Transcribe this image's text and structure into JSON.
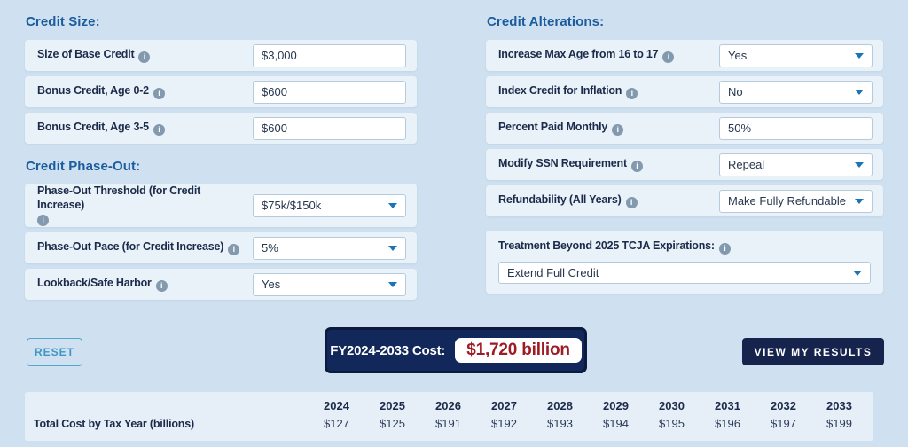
{
  "icons": {
    "info_glyph": "i"
  },
  "colors": {
    "page_bg": "#cfe1f0",
    "row_bg": "#e9f1f9",
    "heading_blue": "#1a5c9e",
    "label_navy": "#1c2b4a",
    "accent_navy": "#12275a",
    "cost_red": "#9e1b24",
    "reset_teal": "#3d97c2",
    "dropdown_arrow": "#1974b8"
  },
  "sections": {
    "credit_size": {
      "heading": "Credit Size:",
      "rows": [
        {
          "label": "Size of Base Credit",
          "value": "$3,000"
        },
        {
          "label": "Bonus Credit, Age 0-2",
          "value": "$600"
        },
        {
          "label": "Bonus Credit, Age 3-5",
          "value": "$600"
        }
      ]
    },
    "credit_phase_out": {
      "heading": "Credit Phase-Out:",
      "rows": [
        {
          "label": "Phase-Out Threshold (for Credit Increase)",
          "value": "$75k/$150k"
        },
        {
          "label": "Phase-Out Pace (for Credit Increase)",
          "value": "5%"
        },
        {
          "label": "Lookback/Safe Harbor",
          "value": "Yes"
        }
      ]
    },
    "credit_alterations": {
      "heading": "Credit Alterations:",
      "rows": [
        {
          "label": "Increase Max Age from 16 to 17",
          "value": "Yes"
        },
        {
          "label": "Index Credit for Inflation",
          "value": "No"
        },
        {
          "label": "Percent Paid Monthly",
          "value": "50%"
        },
        {
          "label": "Modify SSN Requirement",
          "value": "Repeal"
        },
        {
          "label": "Refundability (All Years)",
          "value": "Make Fully Refundable"
        }
      ]
    },
    "treatment": {
      "label": "Treatment Beyond 2025 TCJA Expirations:",
      "value": "Extend Full Credit"
    }
  },
  "actions": {
    "reset_label": "RESET",
    "view_results_label": "VIEW MY RESULTS"
  },
  "cost_summary": {
    "label": "FY2024-2033 Cost:",
    "value": "$1,720 billion"
  },
  "cost_table": {
    "row_label": "Total Cost by Tax Year (billions)",
    "years": [
      "2024",
      "2025",
      "2026",
      "2027",
      "2028",
      "2029",
      "2030",
      "2031",
      "2032",
      "2033"
    ],
    "values": [
      "$127",
      "$125",
      "$191",
      "$192",
      "$193",
      "$194",
      "$195",
      "$196",
      "$197",
      "$199"
    ]
  }
}
